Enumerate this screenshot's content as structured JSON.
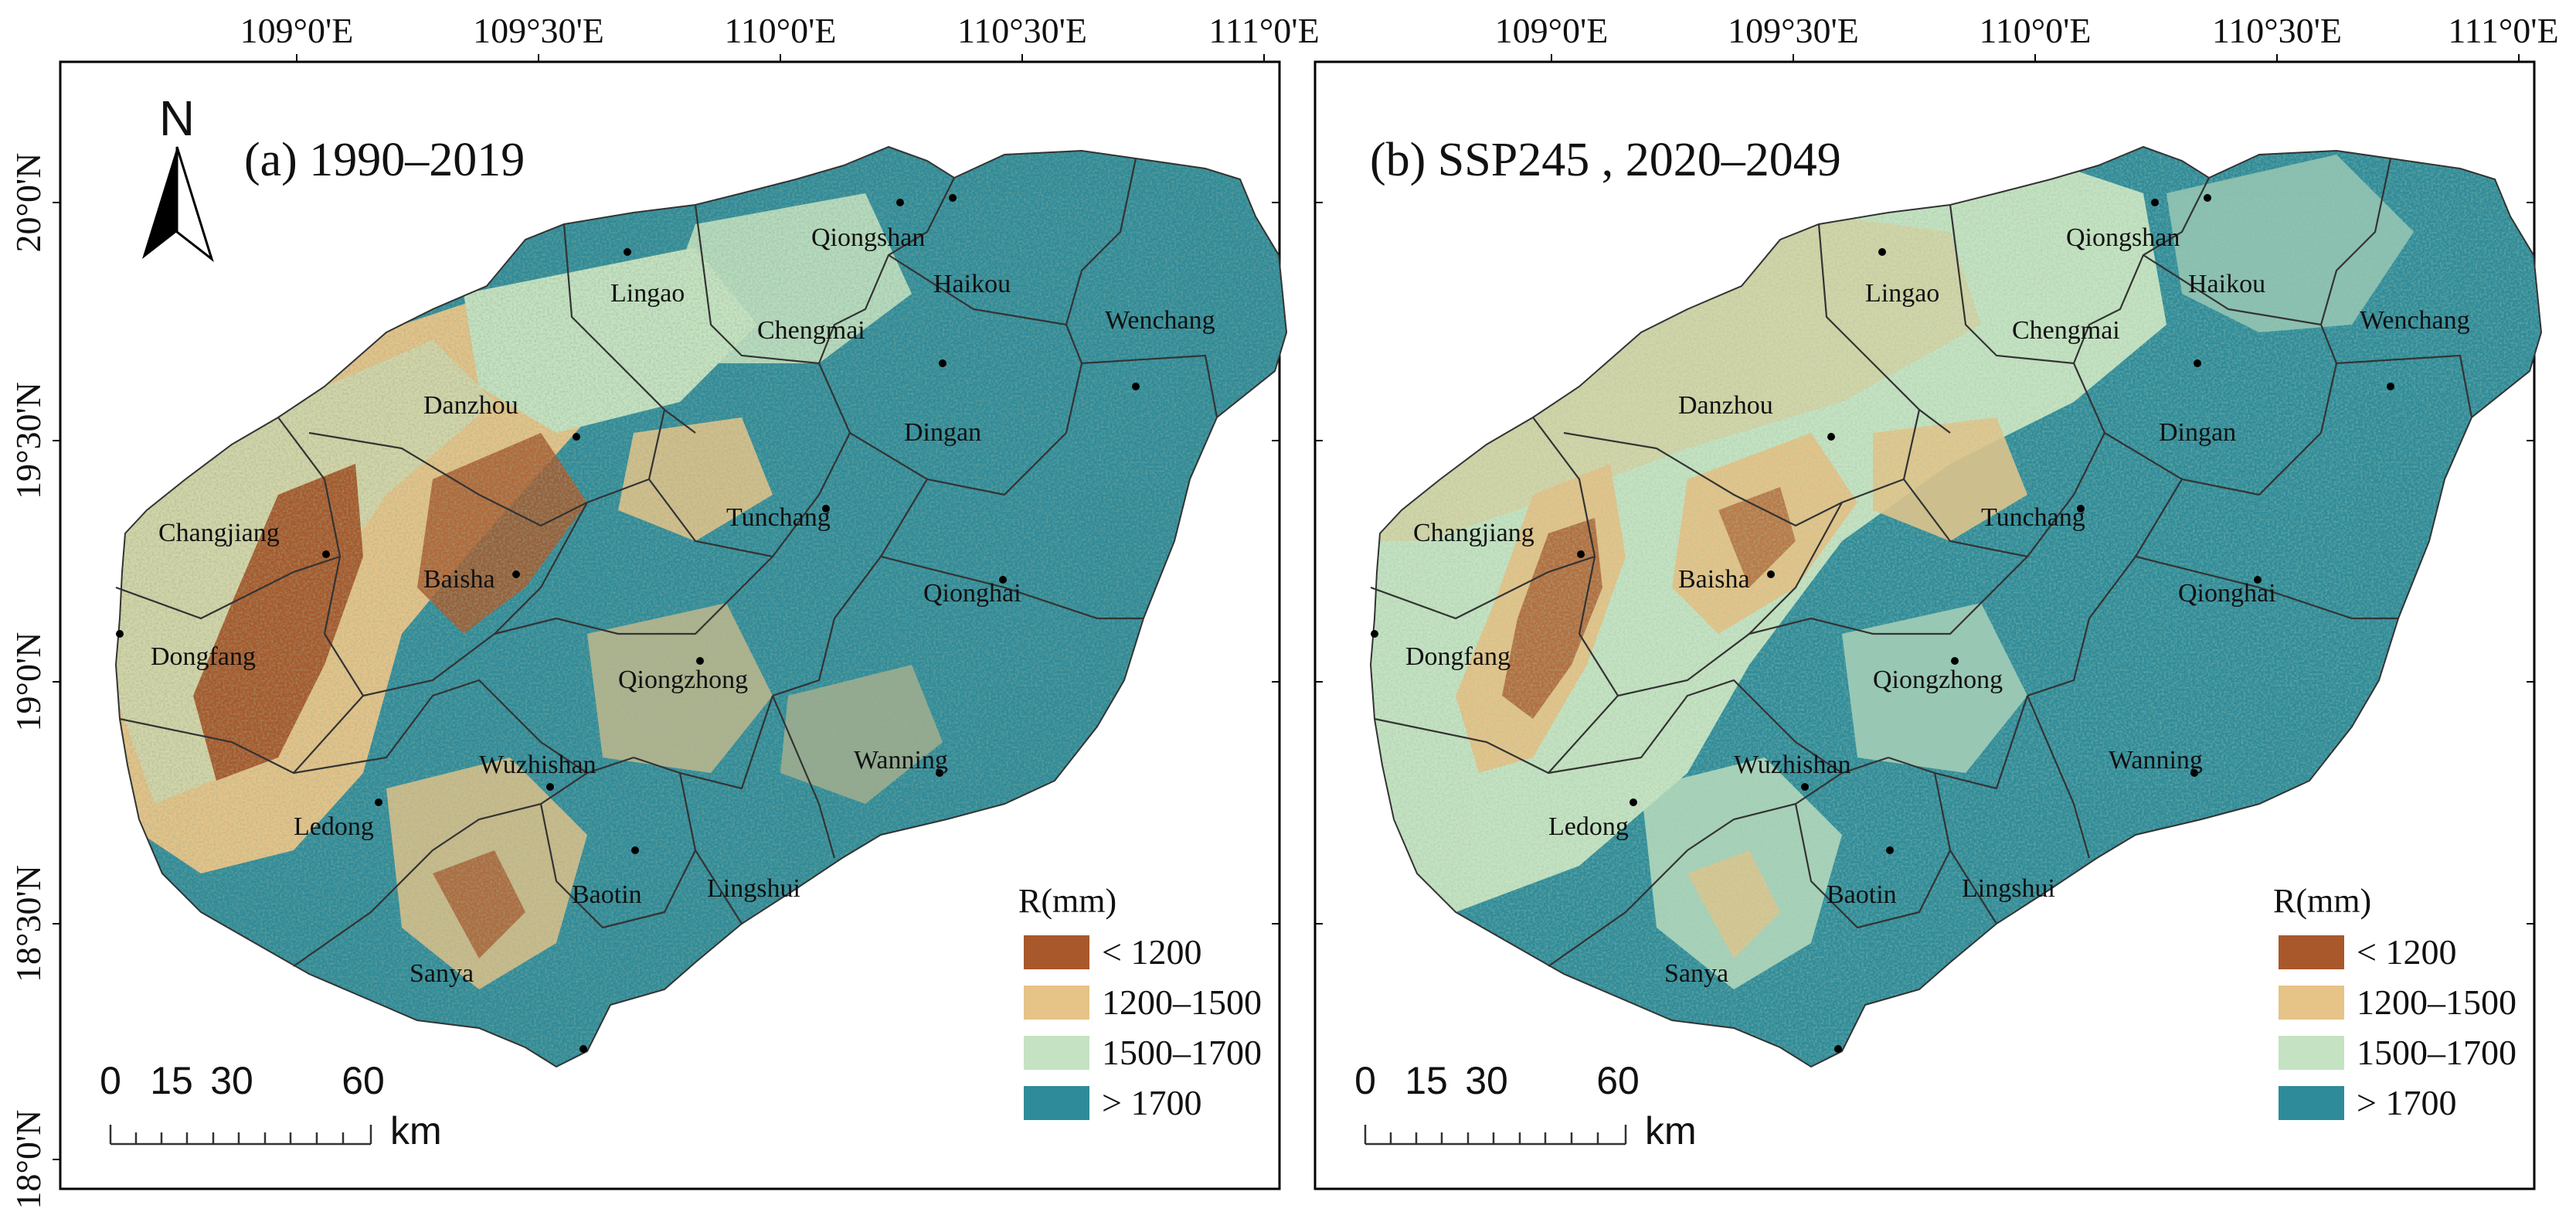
{
  "figure": {
    "top_axis_ticks": [
      "109°0'E",
      "109°30'E",
      "110°0'E",
      "110°30'E",
      "111°0'E"
    ],
    "left_axis_ticks": [
      "20°0'N",
      "19°30'N",
      "19°0'N",
      "18°30'N",
      "18°0'N"
    ]
  },
  "colors": {
    "class_lt_1200": "#a8582a",
    "class_1200_1500": "#e6c387",
    "class_1500_1700": "#c5e3c2",
    "class_gt_1700": "#2e8b9a",
    "boundary": "#333333",
    "city_dot": "#000000"
  },
  "panels": [
    {
      "title": "(a) 1990–2019",
      "north_arrow": "N",
      "legend_title": "R(mm)",
      "legend": [
        "< 1200",
        "1200–1500",
        "1500–1700",
        "> 1700"
      ],
      "scale_numbers": [
        "0",
        "15",
        "30",
        "60"
      ],
      "scale_unit": "km",
      "cities": [
        "Qiongshan",
        "Haikou",
        "Lingao",
        "Chengmai",
        "Wenchang",
        "Danzhou",
        "Dingan",
        "Tunchang",
        "Changjiang",
        "Baisha",
        "Qionghai",
        "Dongfang",
        "Qiongzhong",
        "Wuzhishan",
        "Wanning",
        "Ledong",
        "Baotin",
        "Lingshui",
        "Sanya"
      ]
    },
    {
      "title": "(b) SSP245 , 2020–2049",
      "legend_title": "R(mm)",
      "legend": [
        "< 1200",
        "1200–1500",
        "1500–1700",
        "> 1700"
      ],
      "scale_numbers": [
        "0",
        "15",
        "30",
        "60"
      ],
      "scale_unit": "km",
      "cities": [
        "Qiongshan",
        "Haikou",
        "Lingao",
        "Chengmai",
        "Wenchang",
        "Danzhou",
        "Dingan",
        "Tunchang",
        "Changjiang",
        "Baisha",
        "Qionghai",
        "Dongfang",
        "Qiongzhong",
        "Wuzhishan",
        "Wanning",
        "Ledong",
        "Baotin",
        "Lingshui",
        "Sanya"
      ]
    }
  ]
}
